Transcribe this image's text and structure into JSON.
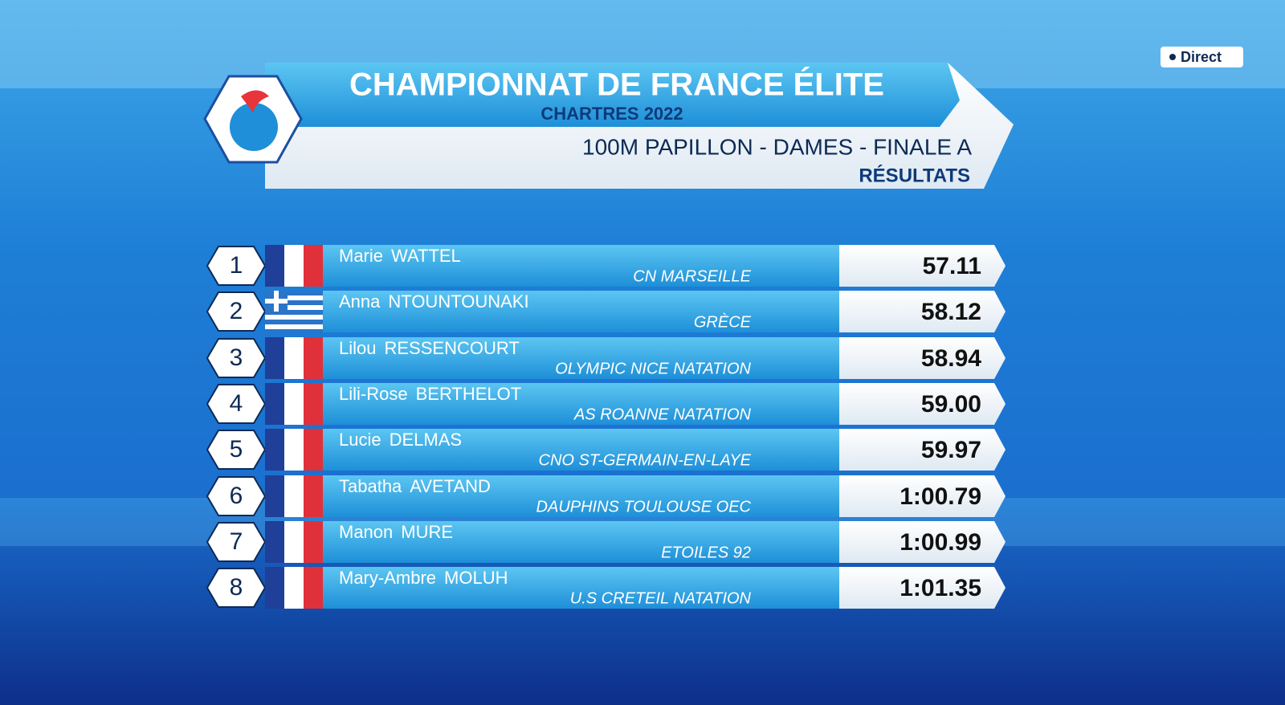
{
  "header": {
    "title": "CHAMPIONNAT DE FRANCE ÉLITE",
    "subtitle": "CHARTRES 2022",
    "event": "100M PAPILLON - DAMES - FINALE A",
    "label": "RÉSULTATS"
  },
  "broadcast": {
    "status": "Direct"
  },
  "table": {
    "rows": [
      {
        "rank": 1,
        "first_name": "Marie",
        "last_name": "WATTEL",
        "club": "CN MARSEILLE",
        "time": "57.11"
      },
      {
        "rank": 2,
        "first_name": "Anna",
        "last_name": "NTOUNTOUNAKI",
        "club": "GRÈCE",
        "time": "58.12"
      },
      {
        "rank": 3,
        "first_name": "Lilou",
        "last_name": "RESSENCOURT",
        "club": "OLYMPIC NICE NATATION",
        "time": "58.94"
      },
      {
        "rank": 4,
        "first_name": "Lili-Rose",
        "last_name": "BERTHELOT",
        "club": "AS ROANNE NATATION",
        "time": "59.00"
      },
      {
        "rank": 5,
        "first_name": "Lucie",
        "last_name": "DELMAS",
        "club": "CNO ST-GERMAIN-EN-LAYE",
        "time": "59.97"
      },
      {
        "rank": 6,
        "first_name": "Tabatha",
        "last_name": "AVETAND",
        "club": "DAUPHINS TOULOUSE OEC",
        "time": "1:00.79"
      },
      {
        "rank": 7,
        "first_name": "Manon",
        "last_name": "MURE",
        "club": "ETOILES 92",
        "time": "1:00.99"
      },
      {
        "rank": 8,
        "first_name": "Mary-Ambre",
        "last_name": "MOLUH",
        "club": "U.S CRETEIL NATATION",
        "time": "1:01.35"
      }
    ]
  }
}
